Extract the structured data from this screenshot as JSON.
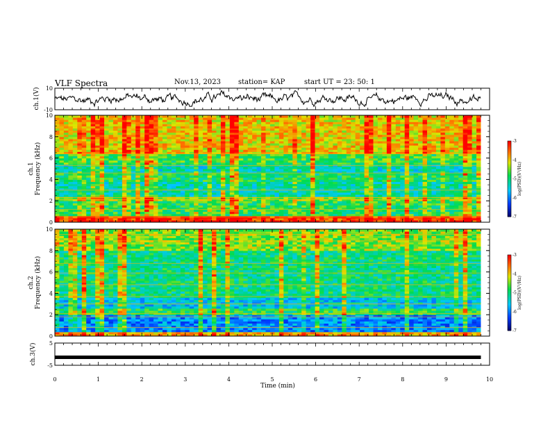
{
  "header": {
    "title": "VLF Spectra",
    "date": "Nov.13, 2023",
    "station": "station= KAP",
    "start": "start  UT  =   23: 50: 1"
  },
  "chart_data": [
    {
      "type": "line",
      "ylabel": "ch.1(V)",
      "ylim": [
        -10,
        10
      ],
      "yticks": [
        "10",
        "-10"
      ],
      "xlim": [
        0,
        10
      ],
      "x_end": 9.8,
      "description_values": "noisy waveform roughly between -5 and 6 V"
    },
    {
      "type": "heatmap",
      "ylabel": [
        "ch.1",
        "Frequency  (kHz)"
      ],
      "ylim": [
        0,
        10
      ],
      "yticks": [
        "0",
        "2",
        "4",
        "6",
        "8",
        "10"
      ],
      "xlim": [
        0,
        10
      ],
      "x_end": 9.8,
      "colorbar": {
        "label": "log(PSD)(V²/Hz)",
        "range": [
          -7,
          -3
        ],
        "ticks": [
          "-3",
          "-4",
          "-5",
          "-6",
          "-7"
        ]
      },
      "bands": [
        {
          "from": 0,
          "to": 0.6,
          "level": -3.3
        },
        {
          "from": 0.6,
          "to": 2.0,
          "level": -4.8
        },
        {
          "from": 2.0,
          "to": 2.4,
          "level": -4.4
        },
        {
          "from": 2.4,
          "to": 3.8,
          "level": -5.2
        },
        {
          "from": 3.8,
          "to": 4.6,
          "level": -4.9
        },
        {
          "from": 4.6,
          "to": 5.4,
          "level": -5.3
        },
        {
          "from": 5.4,
          "to": 6.4,
          "level": -4.7
        },
        {
          "from": 6.4,
          "to": 10,
          "level": -4.0
        }
      ],
      "lines_khz": [
        0.5,
        1.2,
        2.1,
        2.3,
        3.0,
        4.6,
        5.3,
        6.4,
        8.7
      ]
    },
    {
      "type": "heatmap",
      "ylabel": [
        "ch.2",
        "Frequency  (kHz)"
      ],
      "ylim": [
        0,
        10
      ],
      "yticks": [
        "0",
        "2",
        "4",
        "6",
        "8",
        "10"
      ],
      "xlim": [
        0,
        10
      ],
      "x_end": 9.8,
      "colorbar": {
        "label": "log(PSD)(V²/Hz)",
        "range": [
          -7,
          -3
        ],
        "ticks": [
          "-3",
          "-4",
          "-5",
          "-6",
          "-7"
        ]
      },
      "bands": [
        {
          "from": 0,
          "to": 0.5,
          "level": -3.8
        },
        {
          "from": 0.5,
          "to": 2.0,
          "level": -5.9
        },
        {
          "from": 2.0,
          "to": 2.6,
          "level": -4.8
        },
        {
          "from": 2.6,
          "to": 3.6,
          "level": -5.5
        },
        {
          "from": 3.6,
          "to": 5.2,
          "level": -5.0
        },
        {
          "from": 5.2,
          "to": 8.0,
          "level": -5.0
        },
        {
          "from": 8.0,
          "to": 10,
          "level": -4.4
        }
      ],
      "lines_khz": [
        0.3,
        0.8,
        1.8,
        2.1,
        3.0,
        3.7,
        4.8,
        5.9,
        6.8,
        8.9,
        9.5
      ]
    },
    {
      "type": "line",
      "ylabel": "ch.3(V)",
      "ylim": [
        -5,
        5
      ],
      "yticks": [
        "5",
        "-5"
      ],
      "xlim": [
        0,
        10
      ],
      "x_end": 9.8,
      "level": -1.4
    }
  ],
  "xaxis": {
    "label": "Time  (min)",
    "ticks": [
      "0",
      "1",
      "2",
      "3",
      "4",
      "5",
      "6",
      "7",
      "8",
      "9",
      "10"
    ]
  }
}
